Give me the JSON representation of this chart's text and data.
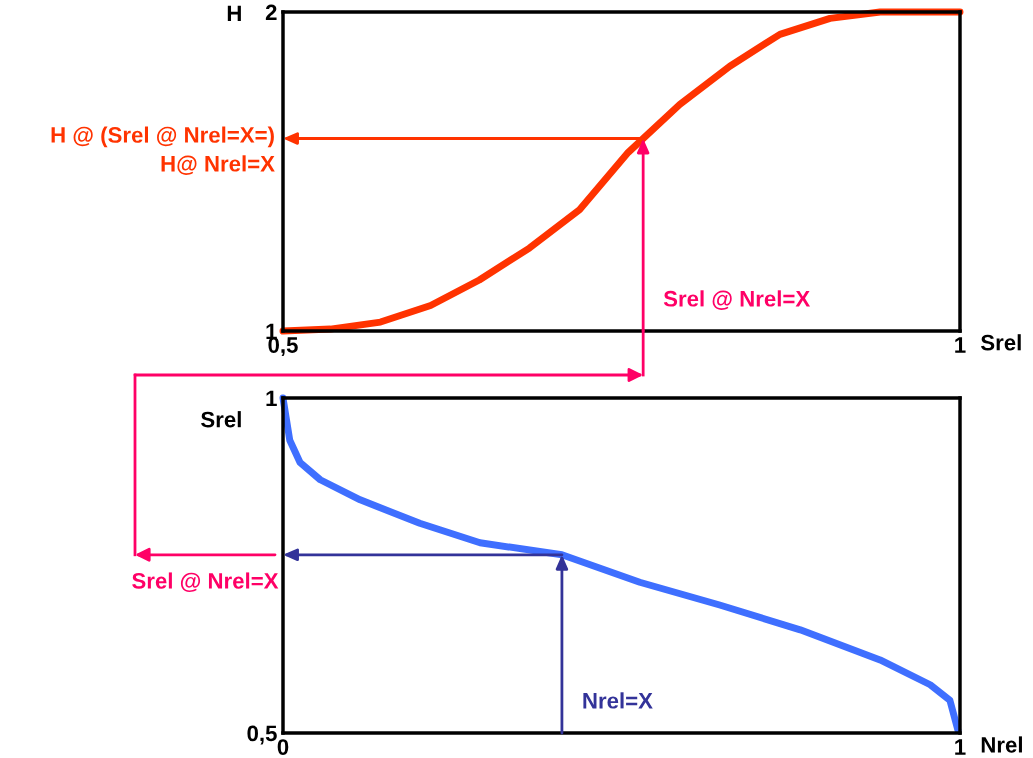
{
  "chart_data": [
    {
      "type": "line",
      "xlabel": "Srel",
      "ylabel": "H",
      "xlim": [
        0.5,
        1
      ],
      "ylim": [
        1,
        2
      ],
      "xticks": [
        {
          "value": 0.5,
          "label": "0,5"
        },
        1
      ],
      "yticks": [
        1,
        2
      ],
      "legend": false,
      "line_style": "solid",
      "marker": "none",
      "x": [
        0.5,
        0.535,
        0.572,
        0.609,
        0.645,
        0.682,
        0.719,
        0.755,
        0.793,
        0.83,
        0.867,
        0.904,
        0.941,
        1.0
      ],
      "series": [
        {
          "color": "#ff3300",
          "values": [
            1.0,
            1.006,
            1.028,
            1.08,
            1.16,
            1.26,
            1.38,
            1.56,
            1.71,
            1.83,
            1.93,
            1.98,
            2.0,
            2.0
          ]
        }
      ],
      "annotations": [
        "H @ (Srel @ Nrel=X=)\nH@ Nrel=X",
        "Srel @ Nrel=X"
      ]
    },
    {
      "type": "line",
      "xlabel": "Nrel",
      "ylabel": "Srel",
      "xlim": [
        0,
        1
      ],
      "ylim": [
        0.5,
        1
      ],
      "xticks": [
        0,
        1
      ],
      "yticks": [
        {
          "value": 0.5,
          "label": "0,5"
        },
        1
      ],
      "legend": false,
      "line_style": "solid",
      "marker": "none",
      "x": [
        0,
        0.01,
        0.025,
        0.055,
        0.114,
        0.202,
        0.291,
        0.412,
        0.527,
        0.645,
        0.764,
        0.882,
        0.956,
        0.985,
        0.997
      ],
      "series": [
        {
          "color": "#3f6fff",
          "values": [
            1.0,
            0.937,
            0.904,
            0.878,
            0.848,
            0.813,
            0.784,
            0.766,
            0.725,
            0.691,
            0.654,
            0.609,
            0.572,
            0.549,
            0.504
          ]
        }
      ],
      "annotations": [
        "Srel @ Nrel=X",
        "Nrel=X"
      ]
    }
  ]
}
